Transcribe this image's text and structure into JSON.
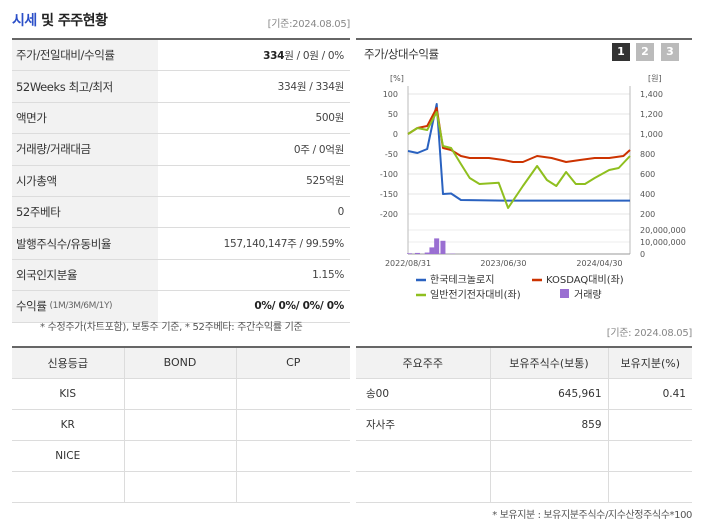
{
  "header": {
    "title_highlight": "시세",
    "title_rest": " 및 주주현황",
    "date": "[기준:2024.08.05]"
  },
  "price_table": [
    {
      "key": "주가/전일대비/수익률",
      "value_bold": "334",
      "value": "원 / 0원 / 0%"
    },
    {
      "key": "52Weeks 최고/최저",
      "value": "334원 / 334원"
    },
    {
      "key": "액면가",
      "value": "500원"
    },
    {
      "key": "거래량/거래대금",
      "value": "0주 / 0억원"
    },
    {
      "key": "시가총액",
      "value": "525억원"
    },
    {
      "key": "52주베타",
      "value": "0"
    },
    {
      "key": "발행주식수/유동비율",
      "value": "157,140,147주 / 99.59%"
    },
    {
      "key": "외국인지분율",
      "value": "1.15%"
    },
    {
      "key": "수익률",
      "key_small": "(1M/3M/6M/1Y)",
      "value_bold": "0%/ 0%/ 0%/ 0%"
    }
  ],
  "footnote_price": "* 수정주가(차트포함), 보통주 기준, * 52주베타: 주간수익률 기준",
  "chart_panel": {
    "title": "주가/상대수익률",
    "buttons": [
      "1",
      "2",
      "3"
    ],
    "active_button": 0
  },
  "chart_data": {
    "type": "line",
    "left_axis": {
      "unit": "[%]",
      "ticks": [
        100,
        50,
        0,
        -50,
        -100,
        -150,
        -200
      ],
      "range": [
        -200,
        100
      ]
    },
    "right_axis_price": {
      "unit": "[원]",
      "ticks": [
        "1,400",
        "1,200",
        "1,000",
        "800",
        "600",
        "400",
        "200"
      ],
      "range": [
        200,
        1400
      ]
    },
    "right_axis_volume": {
      "ticks": [
        "20,000,000",
        "10,000,000",
        "0"
      ],
      "range": [
        0,
        20000000
      ]
    },
    "x_ticks": [
      "2022/08/31",
      "2023/06/30",
      "2024/04/30"
    ],
    "x_range": [
      "2022/08/31",
      "2024/08/05"
    ],
    "series": [
      {
        "name": "한국테크놀로지",
        "color": "#2a62c0",
        "axis": "price",
        "points": [
          [
            "2022/08/31",
            830
          ],
          [
            "2022/09/30",
            810
          ],
          [
            "2022/10/31",
            850
          ],
          [
            "2022/11/30",
            1300
          ],
          [
            "2022/12/20",
            400
          ],
          [
            "2023/01/15",
            405
          ],
          [
            "2023/02/15",
            340
          ],
          [
            "2023/06/30",
            334
          ],
          [
            "2024/04/30",
            334
          ],
          [
            "2024/08/05",
            334
          ]
        ]
      },
      {
        "name": "KOSDAQ대비(좌)",
        "color": "#cc3300",
        "axis": "left",
        "points": [
          [
            "2022/08/31",
            0
          ],
          [
            "2022/09/30",
            15
          ],
          [
            "2022/10/31",
            20
          ],
          [
            "2022/11/30",
            65
          ],
          [
            "2022/12/20",
            -35
          ],
          [
            "2023/01/15",
            -40
          ],
          [
            "2023/02/15",
            -55
          ],
          [
            "2023/03/15",
            -60
          ],
          [
            "2023/05/15",
            -60
          ],
          [
            "2023/06/30",
            -65
          ],
          [
            "2023/07/31",
            -70
          ],
          [
            "2023/08/31",
            -70
          ],
          [
            "2023/10/15",
            -55
          ],
          [
            "2023/11/30",
            -60
          ],
          [
            "2024/01/15",
            -70
          ],
          [
            "2024/02/28",
            -65
          ],
          [
            "2024/04/15",
            -60
          ],
          [
            "2024/05/31",
            -60
          ],
          [
            "2024/07/15",
            -55
          ],
          [
            "2024/08/05",
            -40
          ]
        ]
      },
      {
        "name": "일반전기전자대비(좌)",
        "color": "#8fbf1f",
        "axis": "left",
        "points": [
          [
            "2022/08/31",
            0
          ],
          [
            "2022/09/30",
            15
          ],
          [
            "2022/10/31",
            10
          ],
          [
            "2022/11/30",
            55
          ],
          [
            "2022/12/20",
            -30
          ],
          [
            "2023/01/15",
            -35
          ],
          [
            "2023/02/15",
            -75
          ],
          [
            "2023/03/15",
            -110
          ],
          [
            "2023/04/15",
            -125
          ],
          [
            "2023/06/15",
            -122
          ],
          [
            "2023/07/15",
            -185
          ],
          [
            "2023/08/31",
            -130
          ],
          [
            "2023/10/15",
            -80
          ],
          [
            "2023/11/15",
            -115
          ],
          [
            "2023/12/15",
            -130
          ],
          [
            "2024/01/15",
            -95
          ],
          [
            "2024/02/15",
            -125
          ],
          [
            "2024/03/15",
            -125
          ],
          [
            "2024/04/15",
            -110
          ],
          [
            "2024/05/31",
            -90
          ],
          [
            "2024/06/30",
            -85
          ],
          [
            "2024/08/05",
            -55
          ]
        ]
      }
    ],
    "volume": {
      "name": "거래량",
      "color": "#9a6fd2",
      "bars": [
        [
          "2022/09/05",
          600000
        ],
        [
          "2022/09/30",
          900000
        ],
        [
          "2022/10/31",
          1200000
        ],
        [
          "2022/11/15",
          5500000
        ],
        [
          "2022/11/30",
          13000000
        ],
        [
          "2022/12/20",
          11000000
        ],
        [
          "2023/01/20",
          300000
        ]
      ]
    }
  },
  "ref_date": "[기준: 2024.08.05]",
  "credit_table": {
    "headers": [
      "신용등급",
      "BOND",
      "CP"
    ],
    "rows": [
      [
        "KIS",
        "",
        ""
      ],
      [
        "KR",
        "",
        ""
      ],
      [
        "NICE",
        "",
        ""
      ],
      [
        "",
        "",
        ""
      ]
    ]
  },
  "shareholder_table": {
    "headers": [
      "주요주주",
      "보유주식수(보통)",
      "보유지분(%)"
    ],
    "rows": [
      [
        "송00",
        "645,961",
        "0.41"
      ],
      [
        "자사주",
        "859",
        ""
      ],
      [
        "",
        "",
        ""
      ],
      [
        "",
        "",
        ""
      ]
    ]
  },
  "footnote_share": "* 보유지분 : 보유지분주식수/지수산정주식수*100"
}
